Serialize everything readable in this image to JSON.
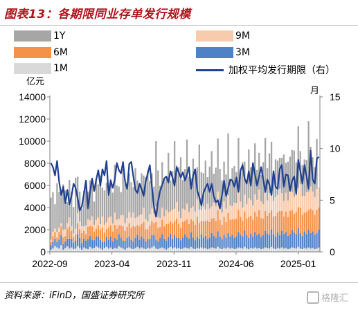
{
  "title": "图表13：各期限同业存单发行规模",
  "source": "资料来源：iFinD，国盛证券研究所",
  "watermark": "格隆汇",
  "colors": {
    "1Y": "#a6a6a6",
    "9M": "#f8cbad",
    "6M": "#f4924a",
    "3M": "#4f81c7",
    "1M": "#d9d9d9",
    "avg": "#1f3f8f",
    "title": "#b0151c"
  },
  "chart_data": {
    "type": "bar",
    "stacked": true,
    "title": "",
    "ylabel": "亿元",
    "y2label": "月",
    "ylim": [
      0,
      14000
    ],
    "y2lim": [
      0,
      15
    ],
    "yticks": [
      0,
      2000,
      4000,
      6000,
      8000,
      10000,
      12000,
      14000
    ],
    "y2ticks": [
      0,
      5,
      10,
      15
    ],
    "xticks": [
      "2022-09",
      "2023-04",
      "2023-11",
      "2024-06",
      "2025-01"
    ],
    "x_range": [
      "2022-09",
      "2025-03"
    ],
    "legend_position": "top",
    "grid": false,
    "legend": [
      "1Y",
      "9M",
      "6M",
      "3M",
      "1M",
      "加权平均发行期限（右）"
    ],
    "stack_order": [
      "1M",
      "3M",
      "6M",
      "9M",
      "1Y"
    ],
    "bar_series": [
      {
        "name": "1M",
        "values": [
          200,
          300,
          500,
          400,
          300,
          600,
          200,
          350,
          500,
          300,
          400,
          250,
          300,
          500,
          350,
          200,
          400,
          300,
          250,
          450,
          300,
          350,
          500,
          400,
          300,
          200,
          350,
          450,
          300,
          400,
          250,
          350,
          300,
          500,
          400,
          300,
          200,
          350,
          400,
          300,
          250,
          350,
          450,
          300,
          400,
          300,
          250,
          350,
          300,
          400,
          500,
          300,
          250,
          350,
          400,
          300,
          200,
          350,
          450,
          300,
          400,
          300,
          350,
          250,
          300,
          400,
          350,
          300,
          450,
          300,
          250,
          350,
          300,
          400,
          300,
          350,
          250,
          300,
          400,
          350,
          300,
          450,
          300,
          250,
          350,
          300,
          400,
          300,
          350,
          250,
          300,
          400,
          350,
          300,
          450,
          300,
          250,
          350,
          300,
          400,
          300,
          350,
          250,
          300,
          400,
          350,
          300,
          450,
          300,
          250,
          350,
          300,
          400,
          300,
          350,
          250,
          300,
          400,
          350,
          300,
          450,
          300,
          250,
          350,
          300,
          400,
          300,
          350,
          250,
          300,
          400
        ]
      },
      {
        "name": "3M",
        "values": [
          400,
          600,
          700,
          500,
          800,
          900,
          500,
          600,
          700,
          900,
          800,
          600,
          700,
          1100,
          900,
          600,
          800,
          700,
          900,
          1000,
          800,
          700,
          900,
          1000,
          800,
          700,
          600,
          900,
          800,
          1000,
          700,
          900,
          800,
          1100,
          900,
          700,
          800,
          900,
          1000,
          800,
          700,
          900,
          1100,
          800,
          1000,
          900,
          700,
          800,
          900,
          1100,
          1000,
          800,
          700,
          900,
          1200,
          900,
          800,
          1000,
          1200,
          900,
          1100,
          1000,
          900,
          800,
          1000,
          1200,
          1000,
          900,
          1300,
          1000,
          800,
          1000,
          900,
          1200,
          1000,
          1100,
          900,
          1000,
          1300,
          1100,
          1000,
          1400,
          1100,
          900,
          1200,
          1000,
          1300,
          1100,
          1200,
          1000,
          1100,
          1400,
          1200,
          1100,
          1500,
          1200,
          1000,
          1300,
          1100,
          1400,
          1200,
          1300,
          1100,
          1200,
          1500,
          1300,
          1200,
          1600,
          1300,
          1100,
          1400,
          1200,
          1500,
          1300,
          1400,
          1200,
          1300,
          1600,
          1400,
          1300,
          1700,
          1400,
          1200,
          1500,
          1300,
          1600,
          1400,
          1500,
          1300,
          1400,
          1600
        ]
      },
      {
        "name": "6M",
        "values": [
          300,
          500,
          600,
          400,
          700,
          800,
          600,
          500,
          900,
          1100,
          700,
          500,
          600,
          1000,
          800,
          900,
          700,
          600,
          1100,
          900,
          1200,
          800,
          700,
          1000,
          900,
          1300,
          800,
          700,
          1100,
          1000,
          900,
          1200,
          1000,
          800,
          1100,
          1300,
          900,
          1000,
          1200,
          1100,
          1400,
          1000,
          900,
          1200,
          1100,
          1500,
          1100,
          900,
          1200,
          1300,
          1100,
          1600,
          1200,
          1000,
          1300,
          1100,
          1500,
          1200,
          1100,
          1400,
          1300,
          1700,
          1300,
          1100,
          1400,
          1200,
          1600,
          1300,
          1200,
          1500,
          1400,
          1800,
          1400,
          1200,
          1500,
          1300,
          1700,
          1400,
          1300,
          1600,
          1500,
          1900,
          1500,
          1300,
          1600,
          1400,
          1800,
          1500,
          1400,
          1700,
          1600,
          2000,
          1600,
          1400,
          1700,
          1500,
          1900,
          1600,
          1500,
          1800,
          1700,
          2100,
          1700,
          1500,
          1800,
          1600,
          2000,
          1700,
          1600,
          1900,
          1800,
          2200,
          1800,
          1600,
          1900,
          1700,
          2100,
          1800,
          1700,
          2000,
          1900,
          2300,
          1900,
          1700,
          2000,
          1800,
          2200,
          1900,
          1800,
          2100,
          2000
        ]
      },
      {
        "name": "9M",
        "values": [
          200,
          400,
          300,
          500,
          400,
          300,
          700,
          600,
          500,
          800,
          400,
          300,
          500,
          900,
          700,
          600,
          400,
          800,
          700,
          500,
          900,
          600,
          800,
          700,
          500,
          1000,
          700,
          600,
          900,
          800,
          700,
          1100,
          800,
          600,
          900,
          1000,
          700,
          800,
          1000,
          900,
          1200,
          800,
          700,
          1000,
          900,
          1300,
          900,
          700,
          1000,
          1100,
          900,
          1400,
          1000,
          800,
          1100,
          900,
          1300,
          1000,
          900,
          1200,
          1100,
          1500,
          1100,
          900,
          1200,
          1000,
          1400,
          1100,
          1000,
          1300,
          1200,
          1600,
          1200,
          1000,
          1300,
          1100,
          1500,
          1200,
          1100,
          1400,
          1300,
          1700,
          1300,
          1100,
          1400,
          1200,
          1600,
          1300,
          1200,
          1500,
          1400,
          1800,
          1400,
          1200,
          1500,
          1300,
          1700,
          1400,
          1300,
          1600,
          1500,
          1900,
          1500,
          1300,
          1600,
          1400,
          1800,
          1500,
          1400,
          1700,
          1600,
          2000,
          1600,
          1400,
          1700,
          1500,
          1900,
          1600,
          1500,
          1800,
          1700,
          2100,
          1700,
          1500,
          1800,
          1600,
          2000,
          1700,
          1600,
          1900,
          1800
        ]
      },
      {
        "name": "1Y",
        "values": [
          3800,
          3600,
          2200,
          4400,
          3200,
          2600,
          4100,
          3500,
          1900,
          3400,
          3100,
          2400,
          4600,
          3300,
          2700,
          1600,
          3200,
          4000,
          2500,
          3600,
          3200,
          2100,
          3500,
          3000,
          4400,
          2600,
          3100,
          3600,
          2000,
          3400,
          2800,
          4300,
          3100,
          2900,
          2100,
          4200,
          3600,
          2700,
          3500,
          3200,
          2300,
          4500,
          3300,
          2600,
          3700,
          2900,
          3800,
          4600,
          3000,
          3200,
          2400,
          5900,
          4200,
          2900,
          4100,
          3300,
          2800,
          5400,
          2800,
          3500,
          6100,
          3300,
          4000,
          5500,
          2600,
          3700,
          5800,
          3200,
          2700,
          4300,
          3600,
          2900,
          5900,
          3400,
          3000,
          4400,
          2400,
          3800,
          5000,
          2600,
          3500,
          4800,
          3300,
          2900,
          3600,
          3100,
          5600,
          2400,
          3400,
          3300,
          2800,
          4700,
          2600,
          4100,
          3000,
          2200,
          4400,
          3000,
          3600,
          4600,
          2700,
          3300,
          2400,
          3800,
          5000,
          2900,
          3600,
          4700,
          2500,
          3400,
          3100,
          2800,
          3200,
          4200,
          2700,
          3500,
          3000,
          3800,
          4200,
          2700,
          5600,
          3000,
          2800,
          3300,
          2900,
          6400,
          3600,
          3100,
          2700,
          4500
        ]
      }
    ],
    "line_series": {
      "name": "加权平均发行期限（右）",
      "axis": "right",
      "values": [
        8.6,
        8.2,
        7.4,
        8.8,
        6.8,
        5.5,
        6.3,
        4.7,
        6.0,
        4.6,
        5.4,
        6.6,
        6.2,
        5.2,
        4.0,
        4.4,
        5.6,
        6.9,
        4.2,
        5.8,
        7.1,
        5.9,
        7.0,
        7.9,
        6.4,
        8.0,
        7.4,
        8.8,
        5.5,
        6.9,
        6.2,
        7.0,
        8.6,
        7.9,
        7.6,
        8.7,
        6.8,
        6.1,
        8.5,
        8.7,
        7.3,
        6.0,
        5.7,
        6.6,
        6.1,
        5.4,
        6.8,
        7.6,
        8.4,
        6.3,
        4.4,
        3.4,
        4.9,
        5.9,
        6.5,
        7.1,
        7.3,
        6.7,
        7.8,
        7.2,
        6.4,
        8.2,
        7.7,
        7.2,
        7.7,
        6.9,
        7.5,
        8.2,
        6.1,
        7.4,
        8.0,
        5.9,
        5.3,
        4.5,
        5.7,
        6.2,
        6.6,
        5.8,
        6.6,
        5.4,
        4.8,
        5.0,
        4.2,
        5.5,
        6.9,
        5.4,
        6.2,
        7.0,
        6.9,
        6.3,
        7.2,
        5.8,
        7.9,
        8.4,
        7.1,
        6.6,
        7.8,
        6.4,
        8.6,
        7.5,
        6.4,
        7.3,
        8.2,
        7.0,
        5.8,
        7.0,
        6.5,
        5.5,
        7.8,
        6.3,
        6.1,
        8.0,
        8.4,
        6.3,
        7.5,
        7.4,
        5.9,
        6.9,
        7.3,
        5.6,
        8.9,
        7.8,
        6.6,
        8.4,
        7.3,
        6.1,
        9.8,
        7.0,
        6.6,
        9.0,
        9.2
      ]
    }
  }
}
